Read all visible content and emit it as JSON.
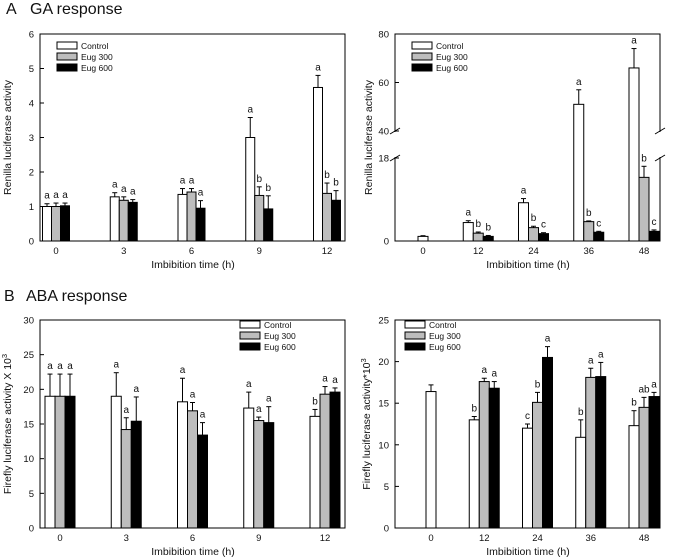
{
  "sections": [
    {
      "label": "A",
      "title": "GA response"
    },
    {
      "label": "B",
      "title": "ABA response"
    }
  ],
  "colors": {
    "control": "#ffffff",
    "eug300": "#bdbdbd",
    "eug600": "#000000",
    "stroke": "#000000"
  },
  "chart_data": [
    {
      "id": "ga-left",
      "type": "bar",
      "ylabel": "Renilla luciferase activity",
      "xlabel": "Imbibition time (h)",
      "ylim": [
        0,
        6
      ],
      "yticks": [
        0,
        1,
        2,
        3,
        4,
        5,
        6
      ],
      "categories": [
        "0",
        "3",
        "6",
        "9",
        "12"
      ],
      "legend": [
        "Control",
        "Eug 300",
        "Eug 600"
      ],
      "series": [
        {
          "name": "Control",
          "values": [
            1.0,
            1.28,
            1.35,
            3.0,
            4.45
          ],
          "errors": [
            0.08,
            0.12,
            0.17,
            0.58,
            0.35
          ],
          "letters": [
            "a",
            "a",
            "a",
            "a",
            "a"
          ]
        },
        {
          "name": "Eug 300",
          "values": [
            1.0,
            1.18,
            1.42,
            1.32,
            1.38
          ],
          "errors": [
            0.1,
            0.1,
            0.1,
            0.25,
            0.3
          ],
          "letters": [
            "a",
            "a",
            "a",
            "b",
            "b"
          ]
        },
        {
          "name": "Eug 600",
          "values": [
            1.02,
            1.12,
            0.95,
            0.93,
            1.18
          ],
          "errors": [
            0.08,
            0.08,
            0.22,
            0.38,
            0.28
          ],
          "letters": [
            "a",
            "a",
            "a",
            "b",
            "b"
          ]
        }
      ]
    },
    {
      "id": "ga-right",
      "type": "bar",
      "ylabel": "Renilla luciferase activity",
      "xlabel": "Imbibition time (h)",
      "axis_break": [
        18,
        40
      ],
      "yticks": [
        0,
        18,
        40,
        60,
        80
      ],
      "categories": [
        "0",
        "12",
        "24",
        "36",
        "48"
      ],
      "legend": [
        "Control",
        "Eug 300",
        "Eug 600"
      ],
      "series": [
        {
          "name": "Control",
          "values": [
            1.0,
            4.0,
            8.3,
            51,
            66
          ],
          "errors": [
            0.15,
            0.4,
            0.9,
            6,
            8
          ],
          "letters": [
            "",
            "a",
            "a",
            "a",
            "a"
          ]
        },
        {
          "name": "Eug 300",
          "values": [
            null,
            1.7,
            2.9,
            4.2,
            13.8
          ],
          "errors": [
            0,
            0.25,
            0.3,
            0.15,
            2.4
          ],
          "letters": [
            "",
            "b",
            "b",
            "b",
            "b"
          ]
        },
        {
          "name": "Eug 600",
          "values": [
            null,
            1.0,
            1.6,
            1.9,
            2.1
          ],
          "errors": [
            0,
            0.2,
            0.2,
            0.2,
            0.3
          ],
          "letters": [
            "",
            "b",
            "c",
            "c",
            "c"
          ]
        }
      ]
    },
    {
      "id": "aba-left",
      "type": "bar",
      "ylabel": "Firefly luciferase activity X 10",
      "ylabel_exp": "3",
      "xlabel": "Imbibition time (h)",
      "ylim": [
        0,
        30
      ],
      "yticks": [
        0,
        5,
        10,
        15,
        20,
        25,
        30
      ],
      "categories": [
        "0",
        "3",
        "6",
        "9",
        "12"
      ],
      "legend": [
        "Control",
        "Eug 300",
        "Eug 600"
      ],
      "series": [
        {
          "name": "Control",
          "values": [
            19,
            19,
            18.2,
            17.3,
            16.1
          ],
          "errors": [
            3.2,
            3.4,
            3.4,
            2.3,
            1.0
          ],
          "letters": [
            "a",
            "a",
            "a",
            "a",
            "b"
          ]
        },
        {
          "name": "Eug 300",
          "values": [
            19,
            14.2,
            16.9,
            15.5,
            19.3
          ],
          "errors": [
            3.2,
            1.7,
            1.2,
            0.5,
            1.1
          ],
          "letters": [
            "a",
            "a",
            "a",
            "a",
            "a"
          ]
        },
        {
          "name": "Eug 600",
          "values": [
            19,
            15.4,
            13.4,
            15.2,
            19.6
          ],
          "errors": [
            3.2,
            3.5,
            1.8,
            2.3,
            0.6
          ],
          "letters": [
            "a",
            "a",
            "a",
            "a",
            "a"
          ]
        }
      ]
    },
    {
      "id": "aba-right",
      "type": "bar",
      "ylabel": "Firefly luciferase activity*10",
      "ylabel_exp": "3",
      "xlabel": "Imbibition time (h)",
      "ylim": [
        0,
        25
      ],
      "yticks": [
        0,
        5,
        10,
        15,
        20,
        25
      ],
      "categories": [
        "0",
        "12",
        "24",
        "36",
        "48"
      ],
      "legend": [
        "Control",
        "Eug 300",
        "Eug 600"
      ],
      "series": [
        {
          "name": "Control",
          "values": [
            16.4,
            13.0,
            12.0,
            10.9,
            12.3
          ],
          "errors": [
            0.8,
            0.4,
            0.5,
            2.1,
            1.8
          ],
          "letters": [
            "",
            "b",
            "c",
            "b",
            "b"
          ]
        },
        {
          "name": "Eug 300",
          "values": [
            null,
            17.6,
            15.1,
            18.1,
            14.5
          ],
          "errors": [
            0,
            0.4,
            1.2,
            1.1,
            1.2
          ],
          "letters": [
            "",
            "a",
            "b",
            "a",
            "ab"
          ]
        },
        {
          "name": "Eug 600",
          "values": [
            null,
            16.8,
            20.5,
            18.2,
            15.8
          ],
          "errors": [
            0,
            0.8,
            1.3,
            1.7,
            0.5
          ],
          "letters": [
            "",
            "a",
            "a",
            "a",
            "a"
          ]
        }
      ]
    }
  ]
}
